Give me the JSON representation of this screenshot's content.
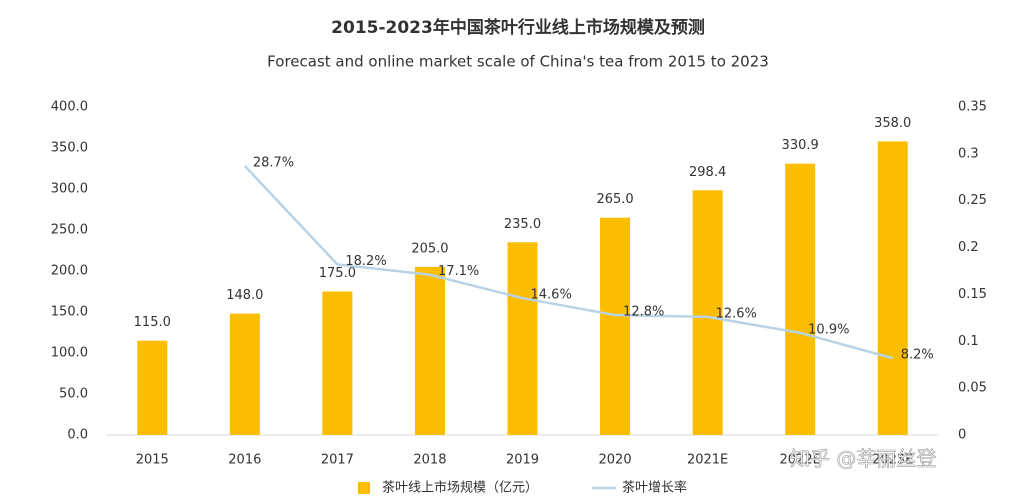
{
  "chart_data": {
    "type": "bar",
    "title": "2015-2023年中国茶叶行业线上市场规模及预测",
    "subtitle": "Forecast and online market scale of China's tea from 2015 to 2023",
    "categories": [
      "2015",
      "2016",
      "2017",
      "2018",
      "2019",
      "2020",
      "2021E",
      "2022E",
      "2023E"
    ],
    "series": [
      {
        "name": "茶叶线上市场规模（亿元）",
        "type": "bar",
        "color": "#fbbd00",
        "values": [
          115,
          148,
          175,
          205,
          235,
          265,
          298.4,
          330.9,
          358
        ],
        "value_labels": [
          "115.0",
          "148.0",
          "175.0",
          "205.0",
          "235.0",
          "265.0",
          "298.4",
          "330.9",
          "358.0"
        ]
      },
      {
        "name": "茶叶增长率",
        "type": "line",
        "axis": "y2",
        "color": "#b8d3e6",
        "values": [
          null,
          0.287,
          0.182,
          0.171,
          0.146,
          0.128,
          0.126,
          0.109,
          0.082
        ],
        "value_labels": [
          null,
          "28.7%",
          "18.2%",
          "17.1%",
          "14.6%",
          "12.8%",
          "12.6%",
          "10.9%",
          "8.2%"
        ]
      }
    ],
    "ylim": [
      0,
      400
    ],
    "yticks": [
      {
        "value": 0,
        "label": "0.0"
      },
      {
        "value": 50,
        "label": "50.0"
      },
      {
        "value": 100,
        "label": "100.0"
      },
      {
        "value": 150,
        "label": "150.0"
      },
      {
        "value": 200,
        "label": "200.0"
      },
      {
        "value": 250,
        "label": "250.0"
      },
      {
        "value": 300,
        "label": "300.0"
      },
      {
        "value": 350,
        "label": "350.0"
      },
      {
        "value": 400,
        "label": "400.0"
      }
    ],
    "y2lim": [
      0,
      0.35
    ],
    "y2ticks": [
      0,
      0.05,
      0.1,
      0.15,
      0.2,
      0.25,
      0.3,
      0.35
    ],
    "legend": "bottom",
    "watermark": "知乎 @莘丽丝登"
  }
}
